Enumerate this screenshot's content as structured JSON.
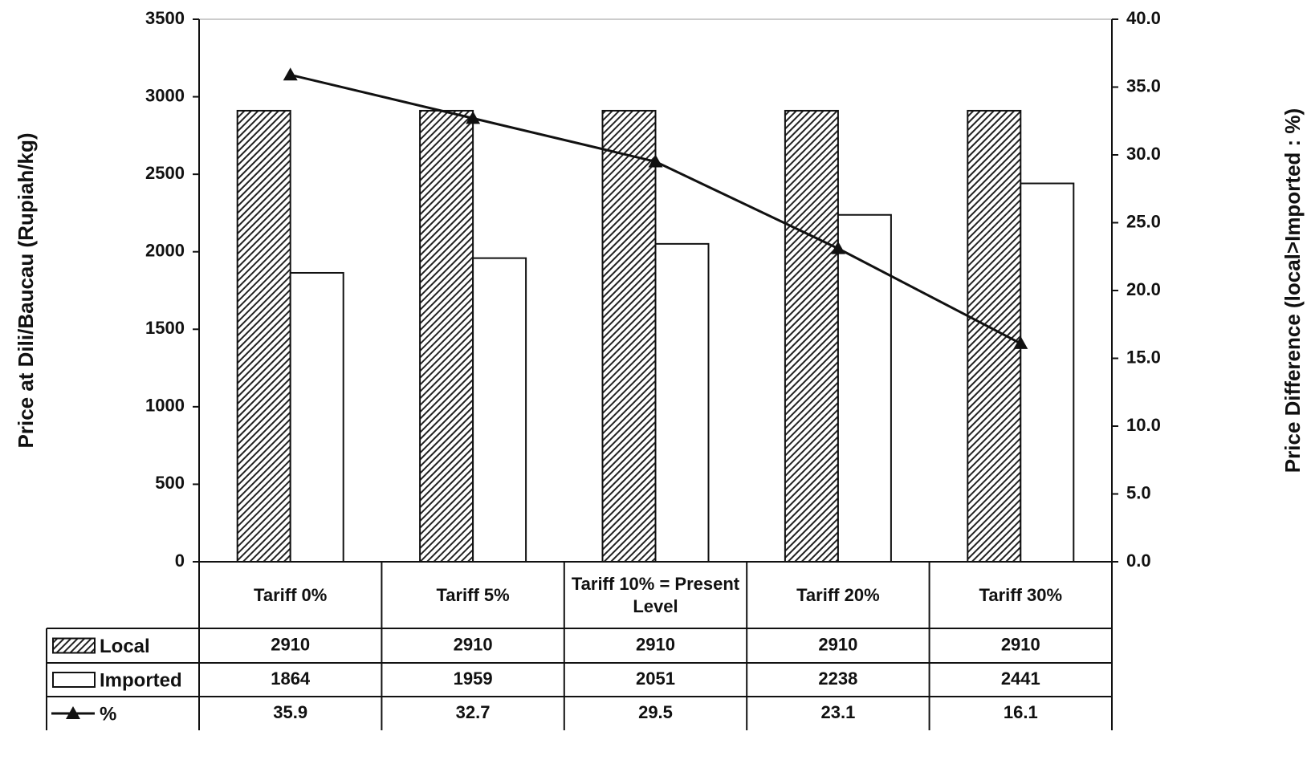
{
  "chart_data": {
    "type": "bar",
    "ylabel": "Price at Dili/Baucau (Rupiah/kg)",
    "y2label": "Price Difference (local>Imported : %)",
    "categories": [
      "Tariff 0%",
      "Tariff 5%",
      "Tariff 10% = Present Level",
      "Tariff 20%",
      "Tariff 30%"
    ],
    "series": [
      {
        "name": "Local",
        "type": "bar",
        "color": "#333333",
        "pattern": "hatch",
        "values": [
          2910,
          2910,
          2910,
          2910,
          2910
        ]
      },
      {
        "name": "Imported",
        "type": "bar",
        "color": "#ffffff",
        "values": [
          1864,
          1959,
          2051,
          2238,
          2441
        ]
      },
      {
        "name": "%",
        "type": "line",
        "axis": "y2",
        "color": "#111111",
        "marker": "triangle",
        "values": [
          35.9,
          32.7,
          29.5,
          23.1,
          16.1
        ]
      }
    ],
    "ylim": [
      0,
      3500
    ],
    "yticks": [
      0,
      500,
      1000,
      1500,
      2000,
      2500,
      3000,
      3500
    ],
    "y2lim": [
      0,
      40
    ],
    "y2ticks": [
      {
        "value": 0,
        "label": "0.0"
      },
      {
        "value": 5,
        "label": "5.0"
      },
      {
        "value": 10,
        "label": "10.0"
      },
      {
        "value": 15,
        "label": "15.0"
      },
      {
        "value": 20,
        "label": "20.0"
      },
      {
        "value": 25,
        "label": "25.0"
      },
      {
        "value": 30,
        "label": "30.0"
      },
      {
        "value": 35,
        "label": "35.0"
      },
      {
        "value": 40,
        "label": "40.0"
      }
    ],
    "data_table": true
  }
}
